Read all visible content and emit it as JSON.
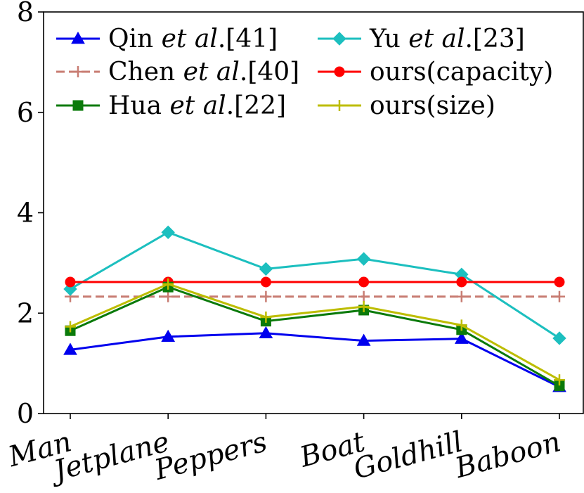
{
  "chart_data": {
    "type": "line",
    "title": "",
    "xlabel": "",
    "ylabel": "",
    "categories": [
      "Man",
      "Jetplane",
      "Peppers",
      "Boat",
      "Goldhill",
      "Baboon"
    ],
    "ylim": [
      0,
      8
    ],
    "yticks": [
      0,
      2,
      4,
      6,
      8
    ],
    "grid": false,
    "legend_position": "top",
    "legend_columns": 2,
    "series": [
      {
        "name": "Qin et al.[41]",
        "name_parts": [
          "Qin ",
          "et al",
          ".[41]"
        ],
        "color": "#0000ee",
        "marker": "triangle",
        "line_style": "solid",
        "values": [
          1.27,
          1.53,
          1.6,
          1.45,
          1.49,
          0.53
        ]
      },
      {
        "name": "Chen et al.[40]",
        "name_parts": [
          "Chen ",
          "et al",
          ".[40]"
        ],
        "color": "#c87c72",
        "marker": "plus",
        "line_style": "dashed",
        "values": [
          2.33,
          2.33,
          2.33,
          2.33,
          2.33,
          2.33
        ]
      },
      {
        "name": "Hua et al.[22]",
        "name_parts": [
          "Hua ",
          "et al",
          ".[22]"
        ],
        "color": "#0a7a0a",
        "marker": "square",
        "line_style": "solid",
        "values": [
          1.65,
          2.52,
          1.84,
          2.06,
          1.67,
          0.55
        ]
      },
      {
        "name": "Yu et al.[23]",
        "name_parts": [
          "Yu ",
          "et al",
          ".[23]"
        ],
        "color": "#1cbfbf",
        "marker": "diamond",
        "line_style": "solid",
        "values": [
          2.48,
          3.61,
          2.88,
          3.08,
          2.77,
          1.5
        ]
      },
      {
        "name": "ours(capacity)",
        "name_parts": [
          "ours(capacity)",
          "",
          ""
        ],
        "color": "#ff0000",
        "marker": "circle",
        "line_style": "solid",
        "values": [
          2.62,
          2.62,
          2.62,
          2.62,
          2.62,
          2.62
        ]
      },
      {
        "name": "ours(size)",
        "name_parts": [
          "ours(size)",
          "",
          ""
        ],
        "color": "#bdbd00",
        "marker": "plus",
        "line_style": "solid",
        "values": [
          1.73,
          2.58,
          1.92,
          2.13,
          1.76,
          0.67
        ]
      }
    ]
  }
}
